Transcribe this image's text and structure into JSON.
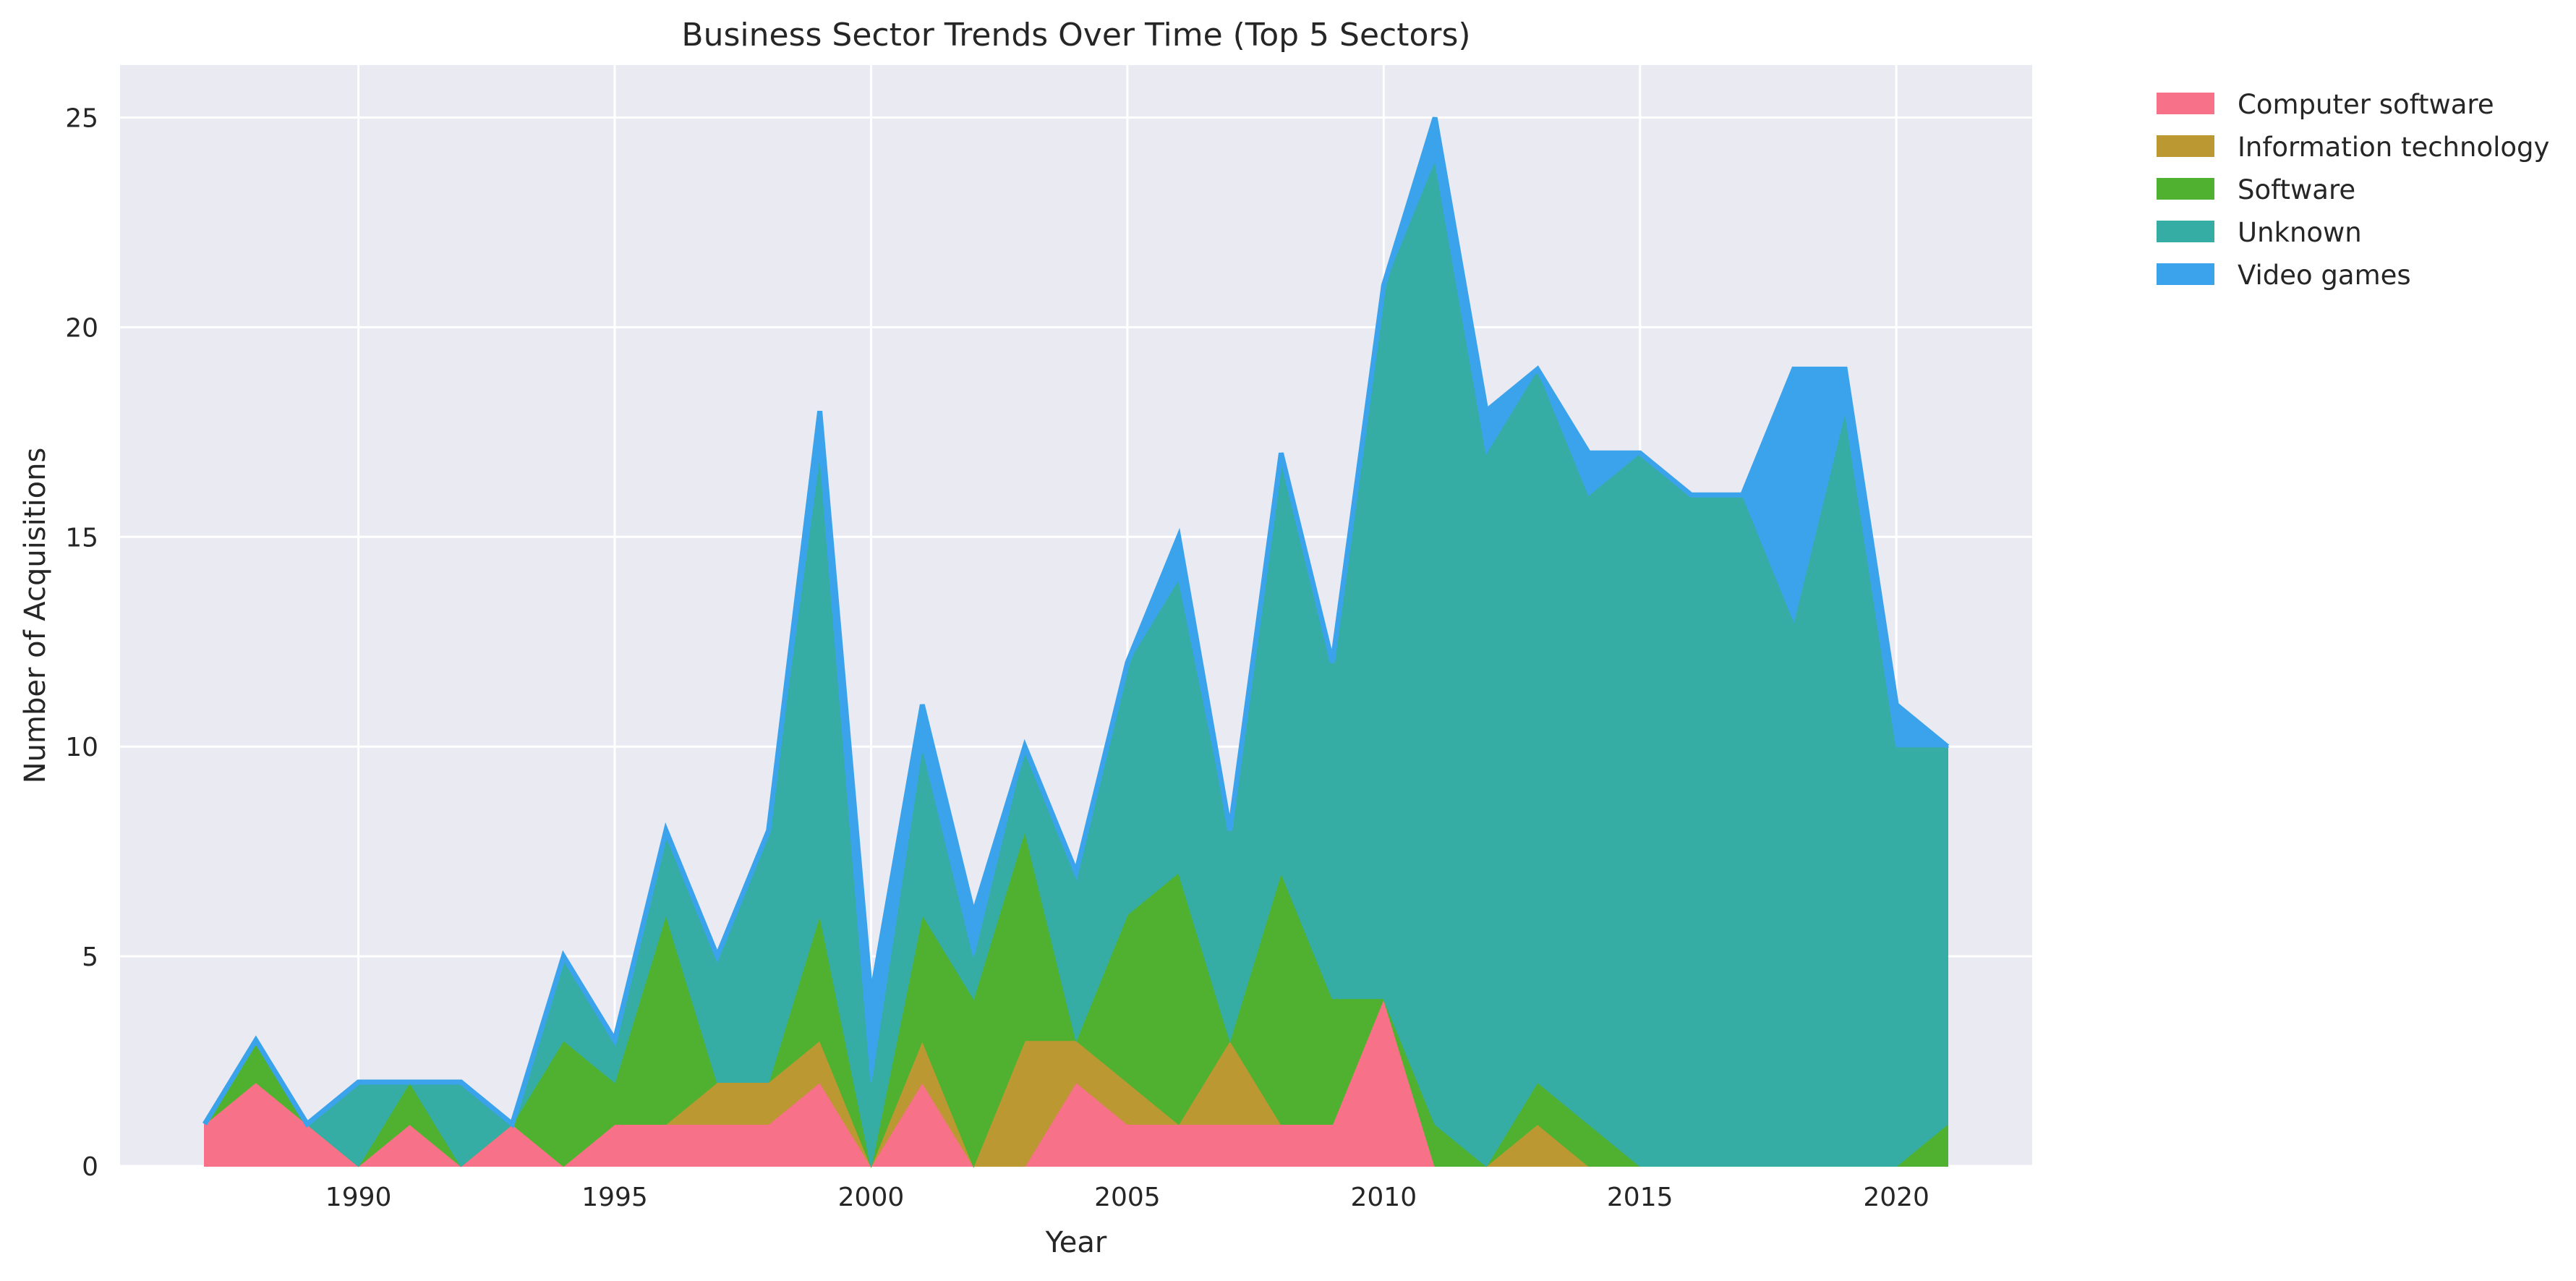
{
  "chart_data": {
    "type": "area",
    "stacked": true,
    "title": "Business Sector Trends Over Time (Top 5 Sectors)",
    "xlabel": "Year",
    "ylabel": "Number of Acquisitions",
    "xlim": [
      1985.35,
      2022.65
    ],
    "ylim": [
      0,
      26.25
    ],
    "xticks": [
      1990,
      1995,
      2000,
      2005,
      2010,
      2015,
      2020
    ],
    "yticks": [
      0,
      5,
      10,
      15,
      20,
      25
    ],
    "grid": true,
    "legend_position": "outside upper right",
    "x": [
      1987,
      1988,
      1989,
      1990,
      1991,
      1992,
      1993,
      1994,
      1995,
      1996,
      1997,
      1998,
      1999,
      2000,
      2001,
      2002,
      2003,
      2004,
      2005,
      2006,
      2007,
      2008,
      2009,
      2010,
      2011,
      2012,
      2013,
      2014,
      2015,
      2016,
      2017,
      2018,
      2019,
      2020,
      2021
    ],
    "series": [
      {
        "name": "Computer software",
        "color": "#f77189",
        "values": [
          1,
          2,
          1,
          0,
          1,
          0,
          1,
          0,
          1,
          1,
          1,
          1,
          2,
          0,
          2,
          0,
          0,
          2,
          1,
          1,
          1,
          1,
          1,
          4,
          0,
          0,
          0,
          0,
          0,
          0,
          0,
          0,
          0,
          0,
          0
        ]
      },
      {
        "name": "Information technology",
        "color": "#bb9832",
        "values": [
          0,
          0,
          0,
          0,
          0,
          0,
          0,
          0,
          0,
          0,
          1,
          1,
          1,
          0,
          1,
          0,
          3,
          1,
          1,
          0,
          2,
          0,
          0,
          0,
          0,
          0,
          1,
          0,
          0,
          0,
          0,
          0,
          0,
          0,
          0
        ]
      },
      {
        "name": "Software",
        "color": "#50b131",
        "values": [
          0,
          1,
          0,
          0,
          1,
          0,
          0,
          3,
          1,
          5,
          0,
          0,
          3,
          0,
          3,
          4,
          5,
          0,
          4,
          6,
          0,
          6,
          3,
          0,
          1,
          0,
          1,
          1,
          0,
          0,
          0,
          0,
          0,
          0,
          1
        ]
      },
      {
        "name": "Unknown",
        "color": "#36ada4",
        "values": [
          0,
          0,
          0,
          2,
          0,
          2,
          0,
          2,
          1,
          2,
          3,
          6,
          11,
          2,
          4,
          1,
          2,
          4,
          6,
          7,
          5,
          10,
          8,
          17,
          23,
          17,
          17,
          15,
          17,
          16,
          16,
          13,
          18,
          10,
          9
        ]
      },
      {
        "name": "Video games",
        "color": "#3ba3ec",
        "values": [
          0,
          0,
          0,
          0,
          0,
          0,
          0,
          0,
          0,
          0,
          0,
          0,
          1,
          2,
          1,
          1,
          0,
          0,
          0,
          1,
          0,
          0,
          0,
          0,
          1,
          1,
          0,
          1,
          0,
          0,
          0,
          6,
          1,
          1,
          0
        ]
      }
    ]
  }
}
